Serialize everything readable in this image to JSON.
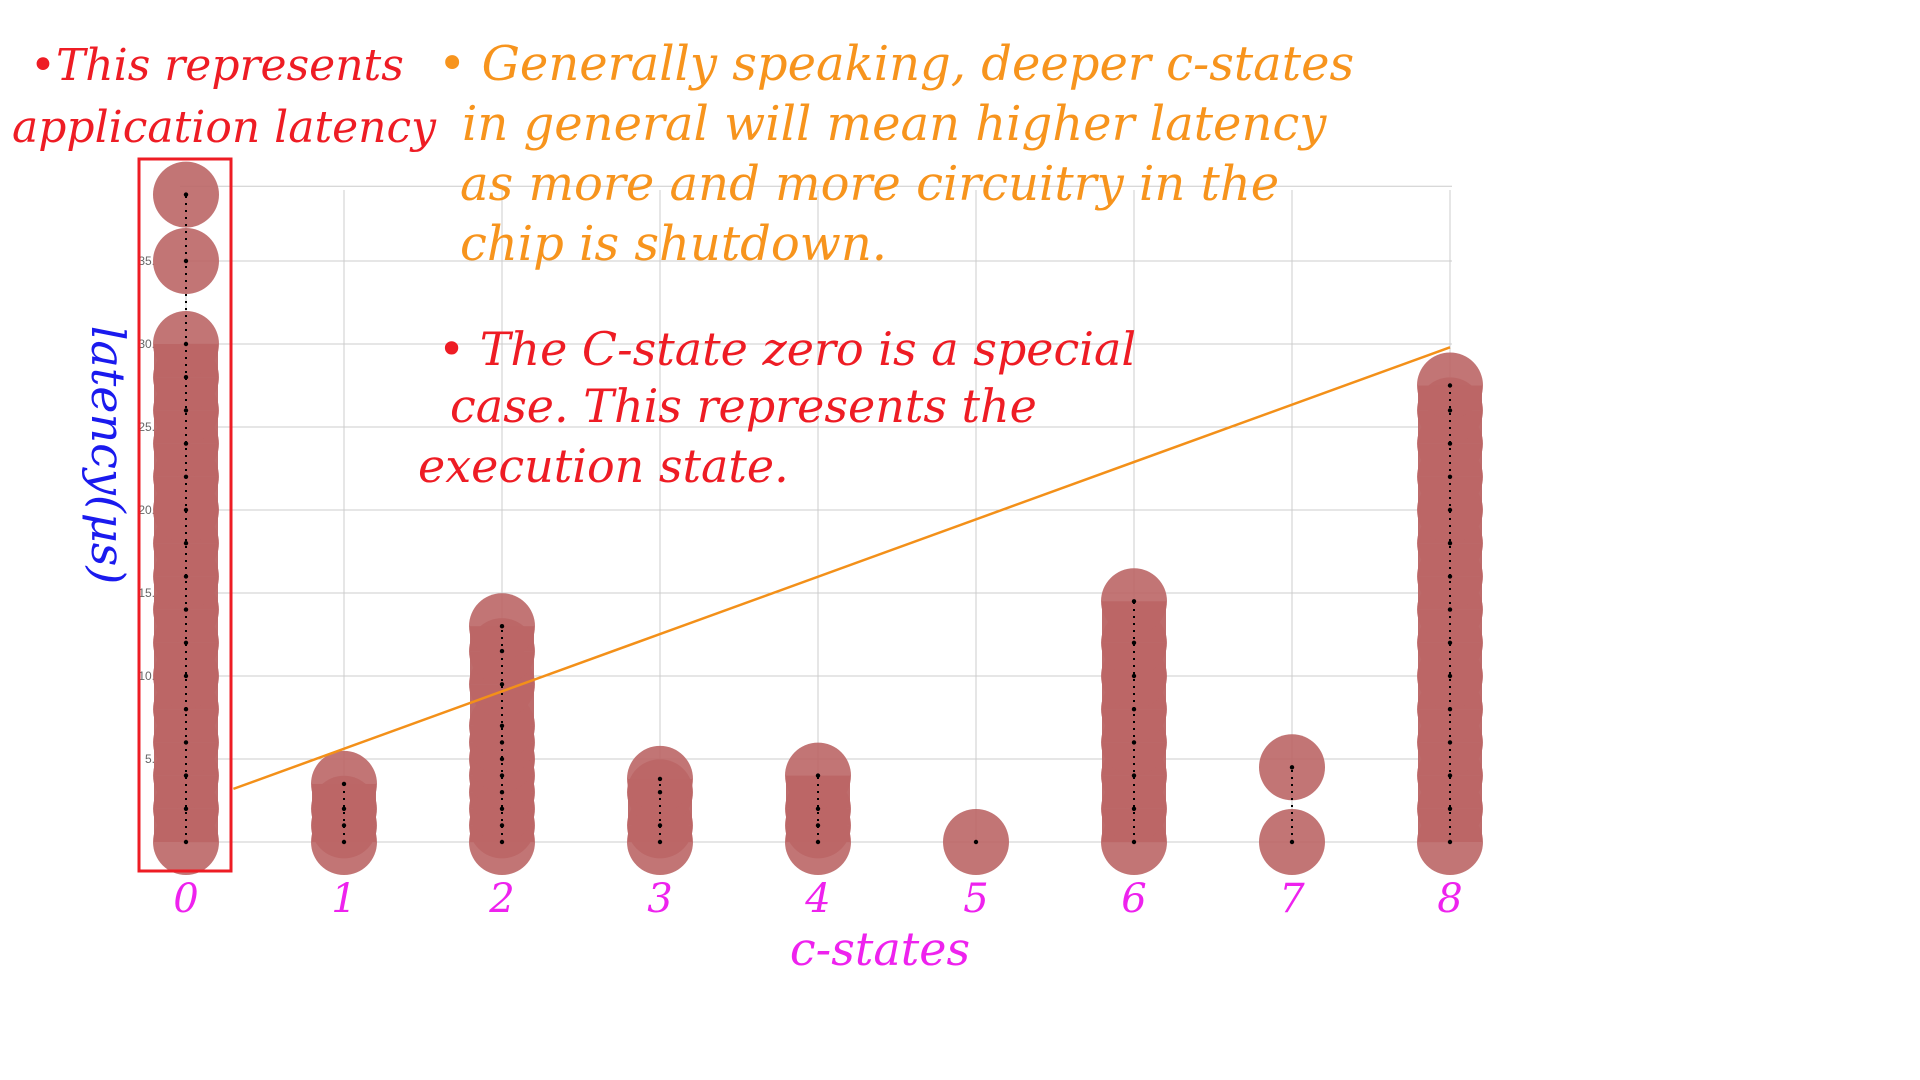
{
  "chart_data": {
    "type": "scatter",
    "xlabel": "c-states",
    "ylabel": "latency(μs)",
    "x_ticks": [
      "0",
      "1",
      "2",
      "3",
      "4",
      "5",
      "6",
      "7",
      "8"
    ],
    "y_ticks": [
      "5.",
      "10.",
      "15.",
      "20.",
      "25.",
      "30.",
      "35."
    ],
    "ylim": [
      0,
      40
    ],
    "grid": true,
    "series": [
      {
        "points": [
          {
            "x": 0,
            "y": [
              0,
              2,
              4,
              6,
              8,
              10,
              12,
              14,
              16,
              18,
              20,
              22,
              24,
              26,
              28,
              30,
              35,
              39
            ]
          },
          {
            "x": 1,
            "y": [
              0,
              1,
              2,
              3.5
            ]
          },
          {
            "x": 2,
            "y": [
              0,
              1,
              2,
              3,
              4,
              5,
              6,
              7,
              9.5,
              11.5,
              13
            ]
          },
          {
            "x": 3,
            "y": [
              0,
              1,
              3,
              3.8
            ]
          },
          {
            "x": 4,
            "y": [
              0,
              1,
              2,
              4
            ]
          },
          {
            "x": 5,
            "y": [
              0
            ]
          },
          {
            "x": 6,
            "y": [
              0,
              2,
              4,
              6,
              8,
              10,
              12,
              14.5
            ]
          },
          {
            "x": 7,
            "y": [
              0,
              4.5
            ]
          },
          {
            "x": 8,
            "y": [
              0,
              2,
              4,
              6,
              8,
              10,
              12,
              14,
              16,
              18,
              20,
              22,
              24,
              26,
              27.5
            ]
          }
        ]
      }
    ],
    "trendline": {
      "from": [
        0.3,
        3.2
      ],
      "to": [
        8,
        29.8
      ]
    }
  },
  "annotations": {
    "left_note_line1": "•This represents",
    "left_note_line2": "application latency",
    "main_note_line1": "• Generally speaking, deeper c-states",
    "main_note_line2": "in general will mean higher latency",
    "main_note_line3": "as more and more circuitry in the",
    "main_note_line4": "chip is shutdown.",
    "special_note_line1": "• The C-state zero is a special",
    "special_note_line2": "case. This represents the",
    "special_note_line3": "execution state."
  },
  "colors": {
    "marker": "#bb6666",
    "trend": "#f39019",
    "red_ink": "#ee1c24",
    "orange_ink": "#f7941d",
    "blue_ink": "#1a1aee",
    "magenta_ink": "#ee22ee",
    "grid": "#cccccc"
  }
}
